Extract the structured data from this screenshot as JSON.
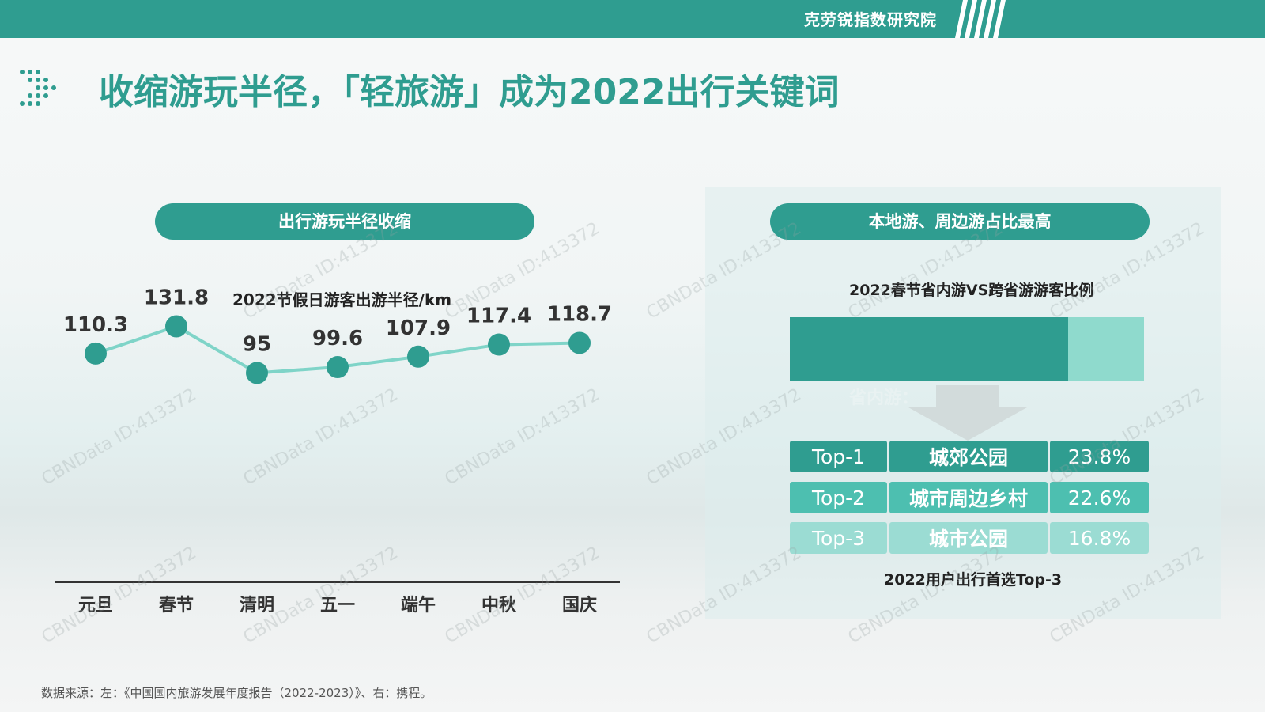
{
  "header": {
    "brand": "克劳锐指数研究院"
  },
  "title": "收缩游玩半径，「轻旅游」成为2022出行关键词",
  "left_panel": {
    "pill": "出行游玩半径收缩",
    "chart_subtitle": "2022节假日游客出游半径/km"
  },
  "right_panel": {
    "pill": "本地游、周边游占比最高",
    "bar_subtitle": "2022春节省内游VS跨省游游客比例",
    "faint_label": "省内游：",
    "top_caption": "2022用户出行首选Top-3",
    "top_list": [
      {
        "rank": "Top-1",
        "name": "城郊公园",
        "pct": "23.8%"
      },
      {
        "rank": "Top-2",
        "name": "城市周边乡村",
        "pct": "22.6%"
      },
      {
        "rank": "Top-3",
        "name": "城市公园",
        "pct": "16.8%"
      }
    ]
  },
  "source": "数据来源：左：《中国国内旅游发展年度报告（2022-2023）》、右：携程。",
  "watermark": "CBNData ID:413372",
  "colors": {
    "brand": "#2f9d90",
    "line": "#7fd4c8",
    "light": "#8fdacd"
  },
  "chart_data": [
    {
      "type": "line",
      "title": "2022节假日游客出游半径/km",
      "categories": [
        "元旦",
        "春节",
        "清明",
        "五一",
        "端午",
        "中秋",
        "国庆"
      ],
      "values": [
        110.3,
        131.8,
        95,
        99.6,
        107.9,
        117.4,
        118.7
      ],
      "data_labels": [
        "110.3",
        "131.8",
        "95",
        "99.6",
        "107.9",
        "117.4",
        "118.7"
      ],
      "grid": false
    },
    {
      "type": "bar",
      "title": "2022春节省内游VS跨省游游客比例",
      "stacked": true,
      "values": [
        78.5,
        21.5
      ],
      "colors": [
        "#2f9d90",
        "#8fdacd"
      ]
    }
  ]
}
